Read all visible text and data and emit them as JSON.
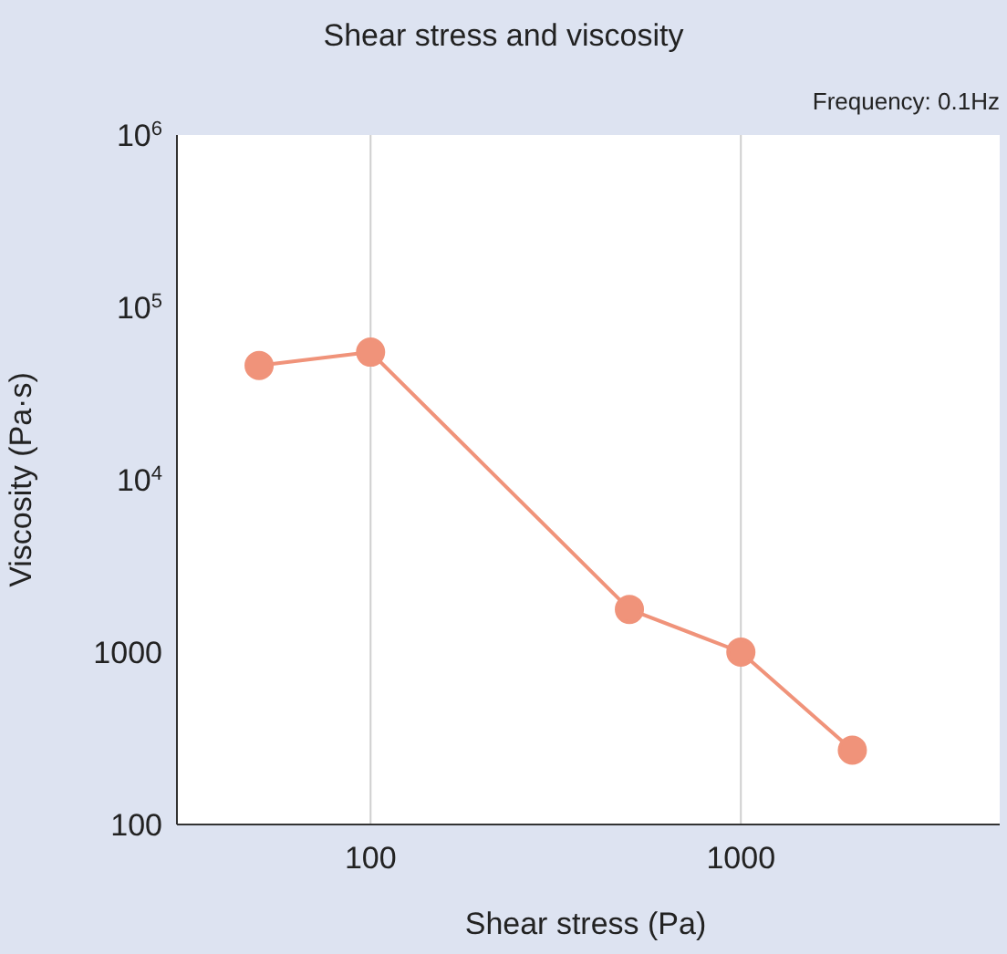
{
  "chart_data": {
    "type": "line",
    "title": "Shear stress and viscosity",
    "annotations": [
      "Frequency: 0.1Hz"
    ],
    "xlabel": "Shear stress (Pa)",
    "ylabel": "Viscosity (Pa·s)",
    "log": "xy",
    "grid": "x",
    "marker": "circle",
    "line_style": "solid",
    "x": [
      50,
      100,
      500,
      1000,
      2000
    ],
    "series": [
      {
        "color": "#f0937a",
        "values": [
          46000,
          55000,
          1770,
          1000,
          270
        ]
      }
    ],
    "xlim": [
      30,
      5000
    ],
    "xticks": [
      100,
      1000
    ],
    "ylim": [
      100,
      1000000
    ],
    "yticks": [
      {
        "value": 1000000,
        "label": "10$^{6}$"
      },
      {
        "value": 100000,
        "label": "10$^{5}$"
      },
      {
        "value": 10000,
        "label": "10$^{4}$"
      },
      1000,
      100
    ]
  }
}
